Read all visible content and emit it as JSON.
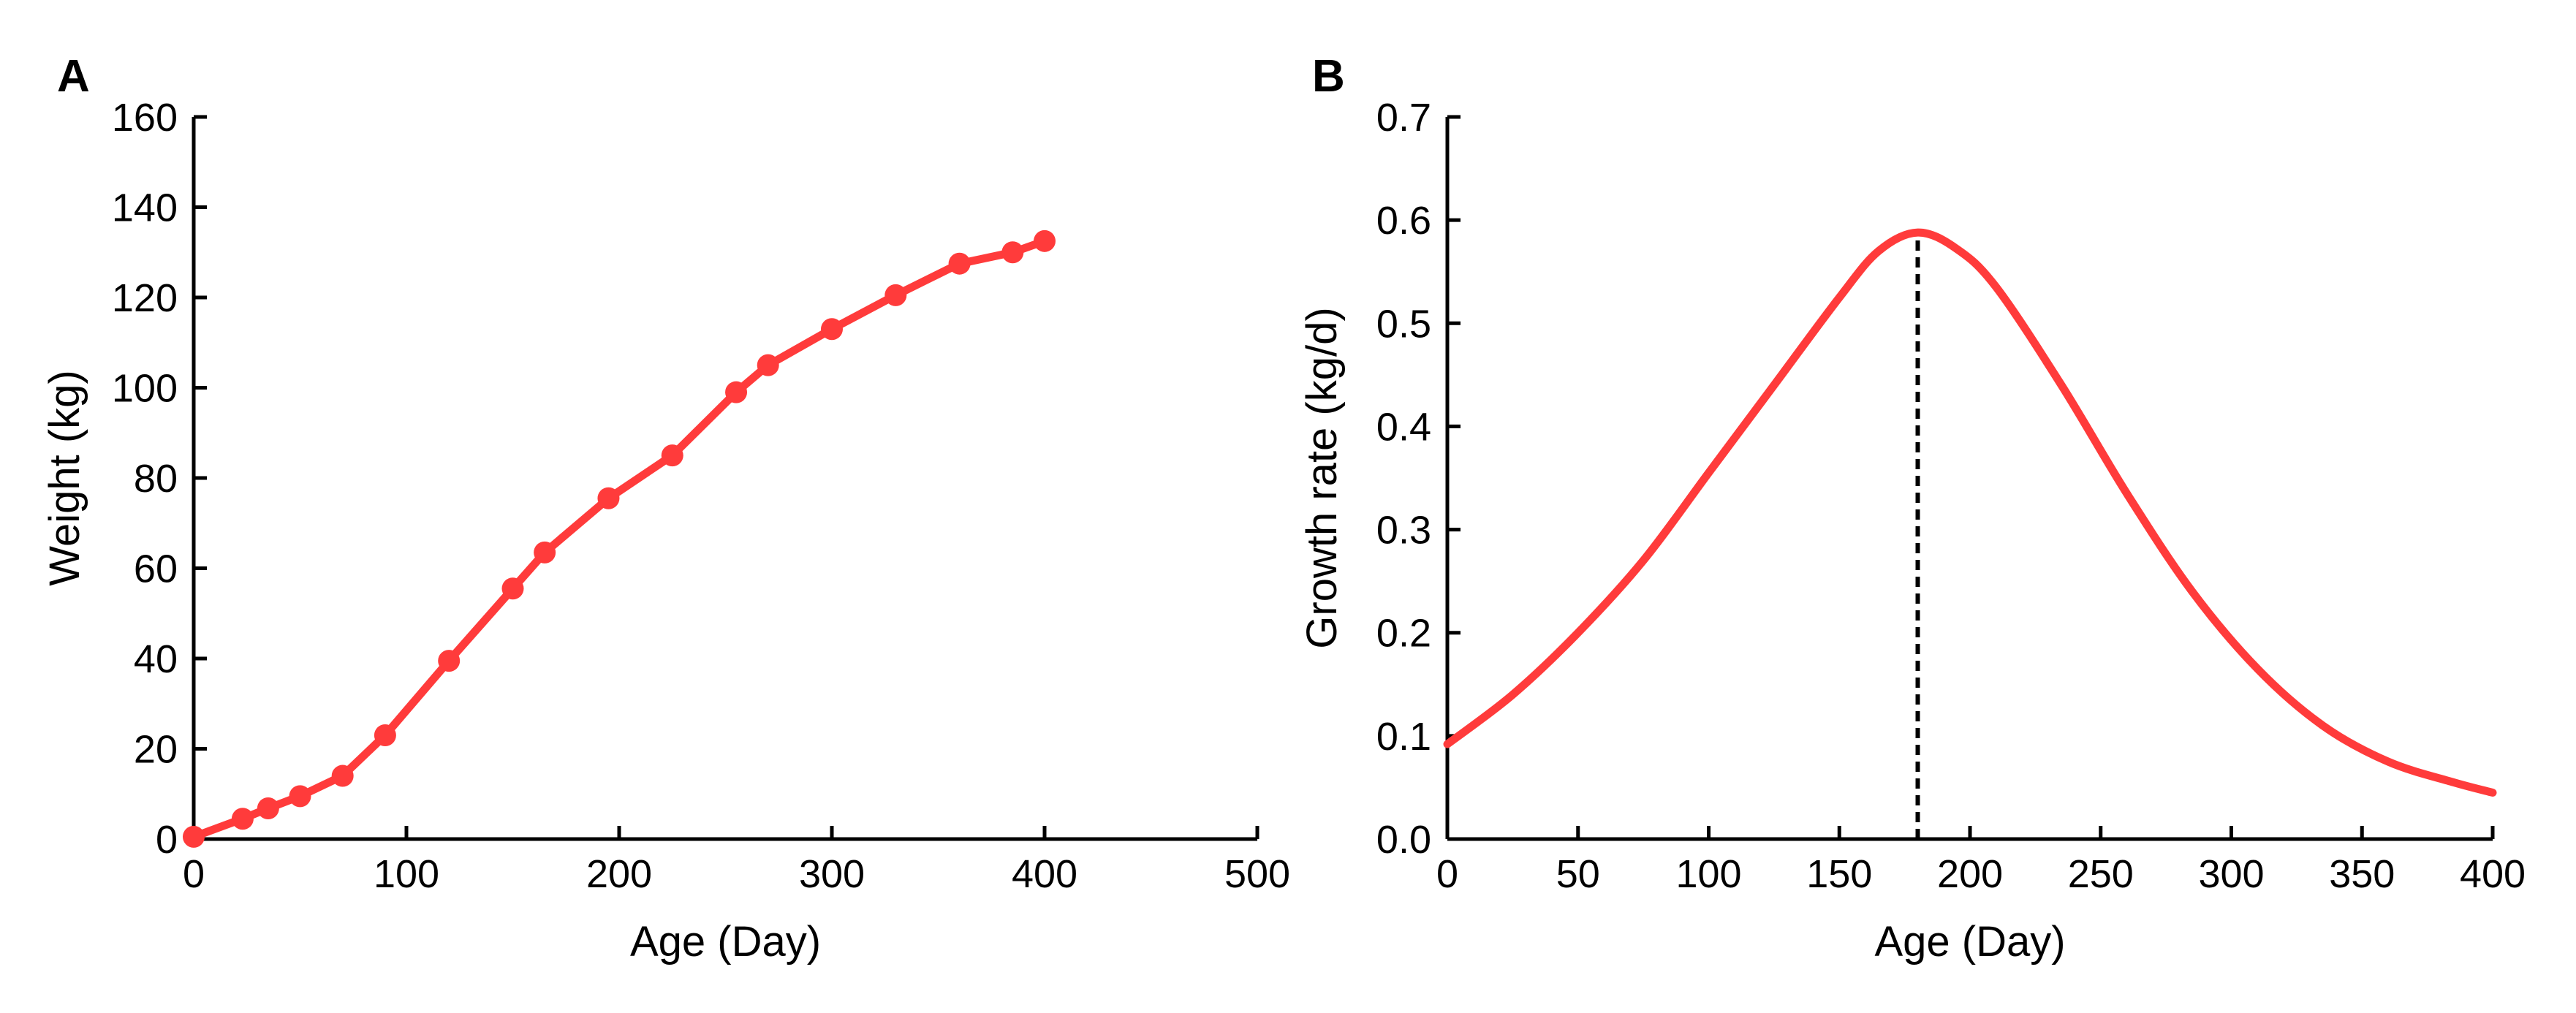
{
  "chart_data": [
    {
      "panel_label": "A",
      "type": "line",
      "xlabel": "Age (Day)",
      "ylabel": "Weight (kg)",
      "xlim": [
        0,
        500
      ],
      "ylim": [
        0,
        160
      ],
      "xticks": [
        0,
        100,
        200,
        300,
        400,
        500
      ],
      "yticks": [
        0,
        20,
        40,
        60,
        80,
        100,
        120,
        140,
        160
      ],
      "series": [
        {
          "name": "Weight",
          "color": "#ff3b3b",
          "markers": true,
          "x": [
            0,
            23,
            35,
            50,
            70,
            90,
            120,
            150,
            165,
            195,
            225,
            255,
            270,
            300,
            330,
            360,
            385,
            400
          ],
          "y": [
            0.5,
            4.5,
            6.8,
            9.5,
            14,
            23,
            39.5,
            55.5,
            63.5,
            75.5,
            85,
            99,
            105,
            113,
            120.5,
            127.5,
            130,
            132.5
          ]
        }
      ]
    },
    {
      "panel_label": "B",
      "type": "line",
      "xlabel": "Age (Day)",
      "ylabel": "Growth rate (kg/d)",
      "xlim": [
        0,
        400
      ],
      "ylim": [
        0,
        0.7
      ],
      "xticks": [
        0,
        50,
        100,
        150,
        200,
        250,
        300,
        350,
        400
      ],
      "yticks": [
        "0.0",
        "0.1",
        "0.2",
        "0.3",
        "0.4",
        "0.5",
        "0.6",
        "0.7"
      ],
      "series": [
        {
          "name": "Growth rate",
          "color": "#ff3b3b",
          "markers": false,
          "x": [
            0,
            25,
            50,
            75,
            100,
            125,
            150,
            165,
            180,
            195,
            210,
            235,
            260,
            285,
            310,
            335,
            360,
            385,
            400
          ],
          "y": [
            0.092,
            0.14,
            0.2,
            0.27,
            0.355,
            0.44,
            0.525,
            0.57,
            0.588,
            0.572,
            0.535,
            0.44,
            0.335,
            0.24,
            0.165,
            0.11,
            0.075,
            0.055,
            0.045
          ]
        }
      ],
      "reference_line": {
        "x": 180,
        "y_top": 0.588,
        "style": "dashed",
        "color": "#000000"
      }
    }
  ]
}
